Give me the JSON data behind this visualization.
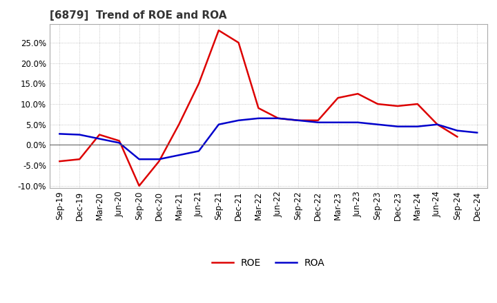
{
  "title": "[6879]  Trend of ROE and ROA",
  "labels": [
    "Sep-19",
    "Dec-19",
    "Mar-20",
    "Jun-20",
    "Sep-20",
    "Dec-20",
    "Mar-21",
    "Jun-21",
    "Sep-21",
    "Dec-21",
    "Mar-22",
    "Jun-22",
    "Sep-22",
    "Dec-22",
    "Mar-23",
    "Jun-23",
    "Sep-23",
    "Dec-23",
    "Mar-24",
    "Jun-24",
    "Sep-24",
    "Dec-24"
  ],
  "ROE": [
    -4.0,
    -3.5,
    2.5,
    1.0,
    -10.0,
    -4.0,
    5.0,
    15.0,
    28.0,
    25.0,
    9.0,
    6.5,
    6.0,
    6.0,
    11.5,
    12.5,
    10.0,
    9.5,
    10.0,
    5.0,
    2.0,
    null
  ],
  "ROA": [
    2.7,
    2.5,
    1.5,
    0.5,
    -3.5,
    -3.5,
    -2.5,
    -1.5,
    5.0,
    6.0,
    6.5,
    6.5,
    6.0,
    5.5,
    5.5,
    5.5,
    5.0,
    4.5,
    4.5,
    5.0,
    3.5,
    3.0
  ],
  "roe_color": "#dd0000",
  "roa_color": "#0000cc",
  "ylim": [
    -10.5,
    29.5
  ],
  "yticks": [
    -10.0,
    -5.0,
    0.0,
    5.0,
    10.0,
    15.0,
    20.0,
    25.0
  ],
  "background_color": "#ffffff",
  "plot_bg_color": "#ffffff",
  "grid_color": "#aaaaaa",
  "title_fontsize": 11,
  "legend_fontsize": 10,
  "axis_fontsize": 8.5
}
